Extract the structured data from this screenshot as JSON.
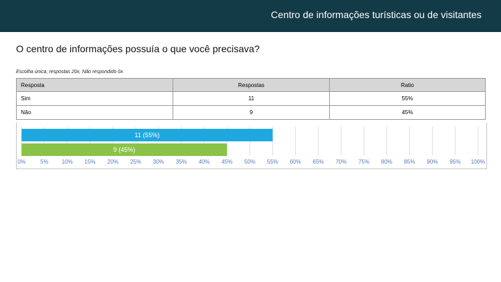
{
  "header": {
    "title": "Centro de informações turísticas ou de visitantes"
  },
  "question": {
    "title": "O centro de informações possuía o que você precisava?",
    "info": "Escolha única, respostas 20x, Não respondido 0x"
  },
  "table": {
    "headers": [
      "Resposta",
      "Respostas",
      "Ratio"
    ],
    "rows": [
      {
        "label": "Sim",
        "count": "11",
        "ratio": "55%"
      },
      {
        "label": "Não",
        "count": "9",
        "ratio": "45%"
      }
    ]
  },
  "chart_data": {
    "type": "bar",
    "orientation": "horizontal",
    "categories": [
      "Sim",
      "Não"
    ],
    "values": [
      55,
      45
    ],
    "bar_labels": [
      "11 (55%)",
      "9 (45%)"
    ],
    "colors": [
      "#1fa8e0",
      "#8bc34a"
    ],
    "xlim": [
      0,
      100
    ],
    "ticks": [
      0,
      5,
      10,
      15,
      20,
      25,
      30,
      35,
      40,
      45,
      50,
      55,
      60,
      65,
      70,
      75,
      80,
      85,
      90,
      95,
      100
    ],
    "tick_labels": [
      "0%",
      "5%",
      "10%",
      "15%",
      "20%",
      "25%",
      "30%",
      "35%",
      "40%",
      "45%",
      "50%",
      "55%",
      "60%",
      "65%",
      "70%",
      "75%",
      "80%",
      "85%",
      "90%",
      "95%",
      "100%"
    ],
    "grid": true
  }
}
